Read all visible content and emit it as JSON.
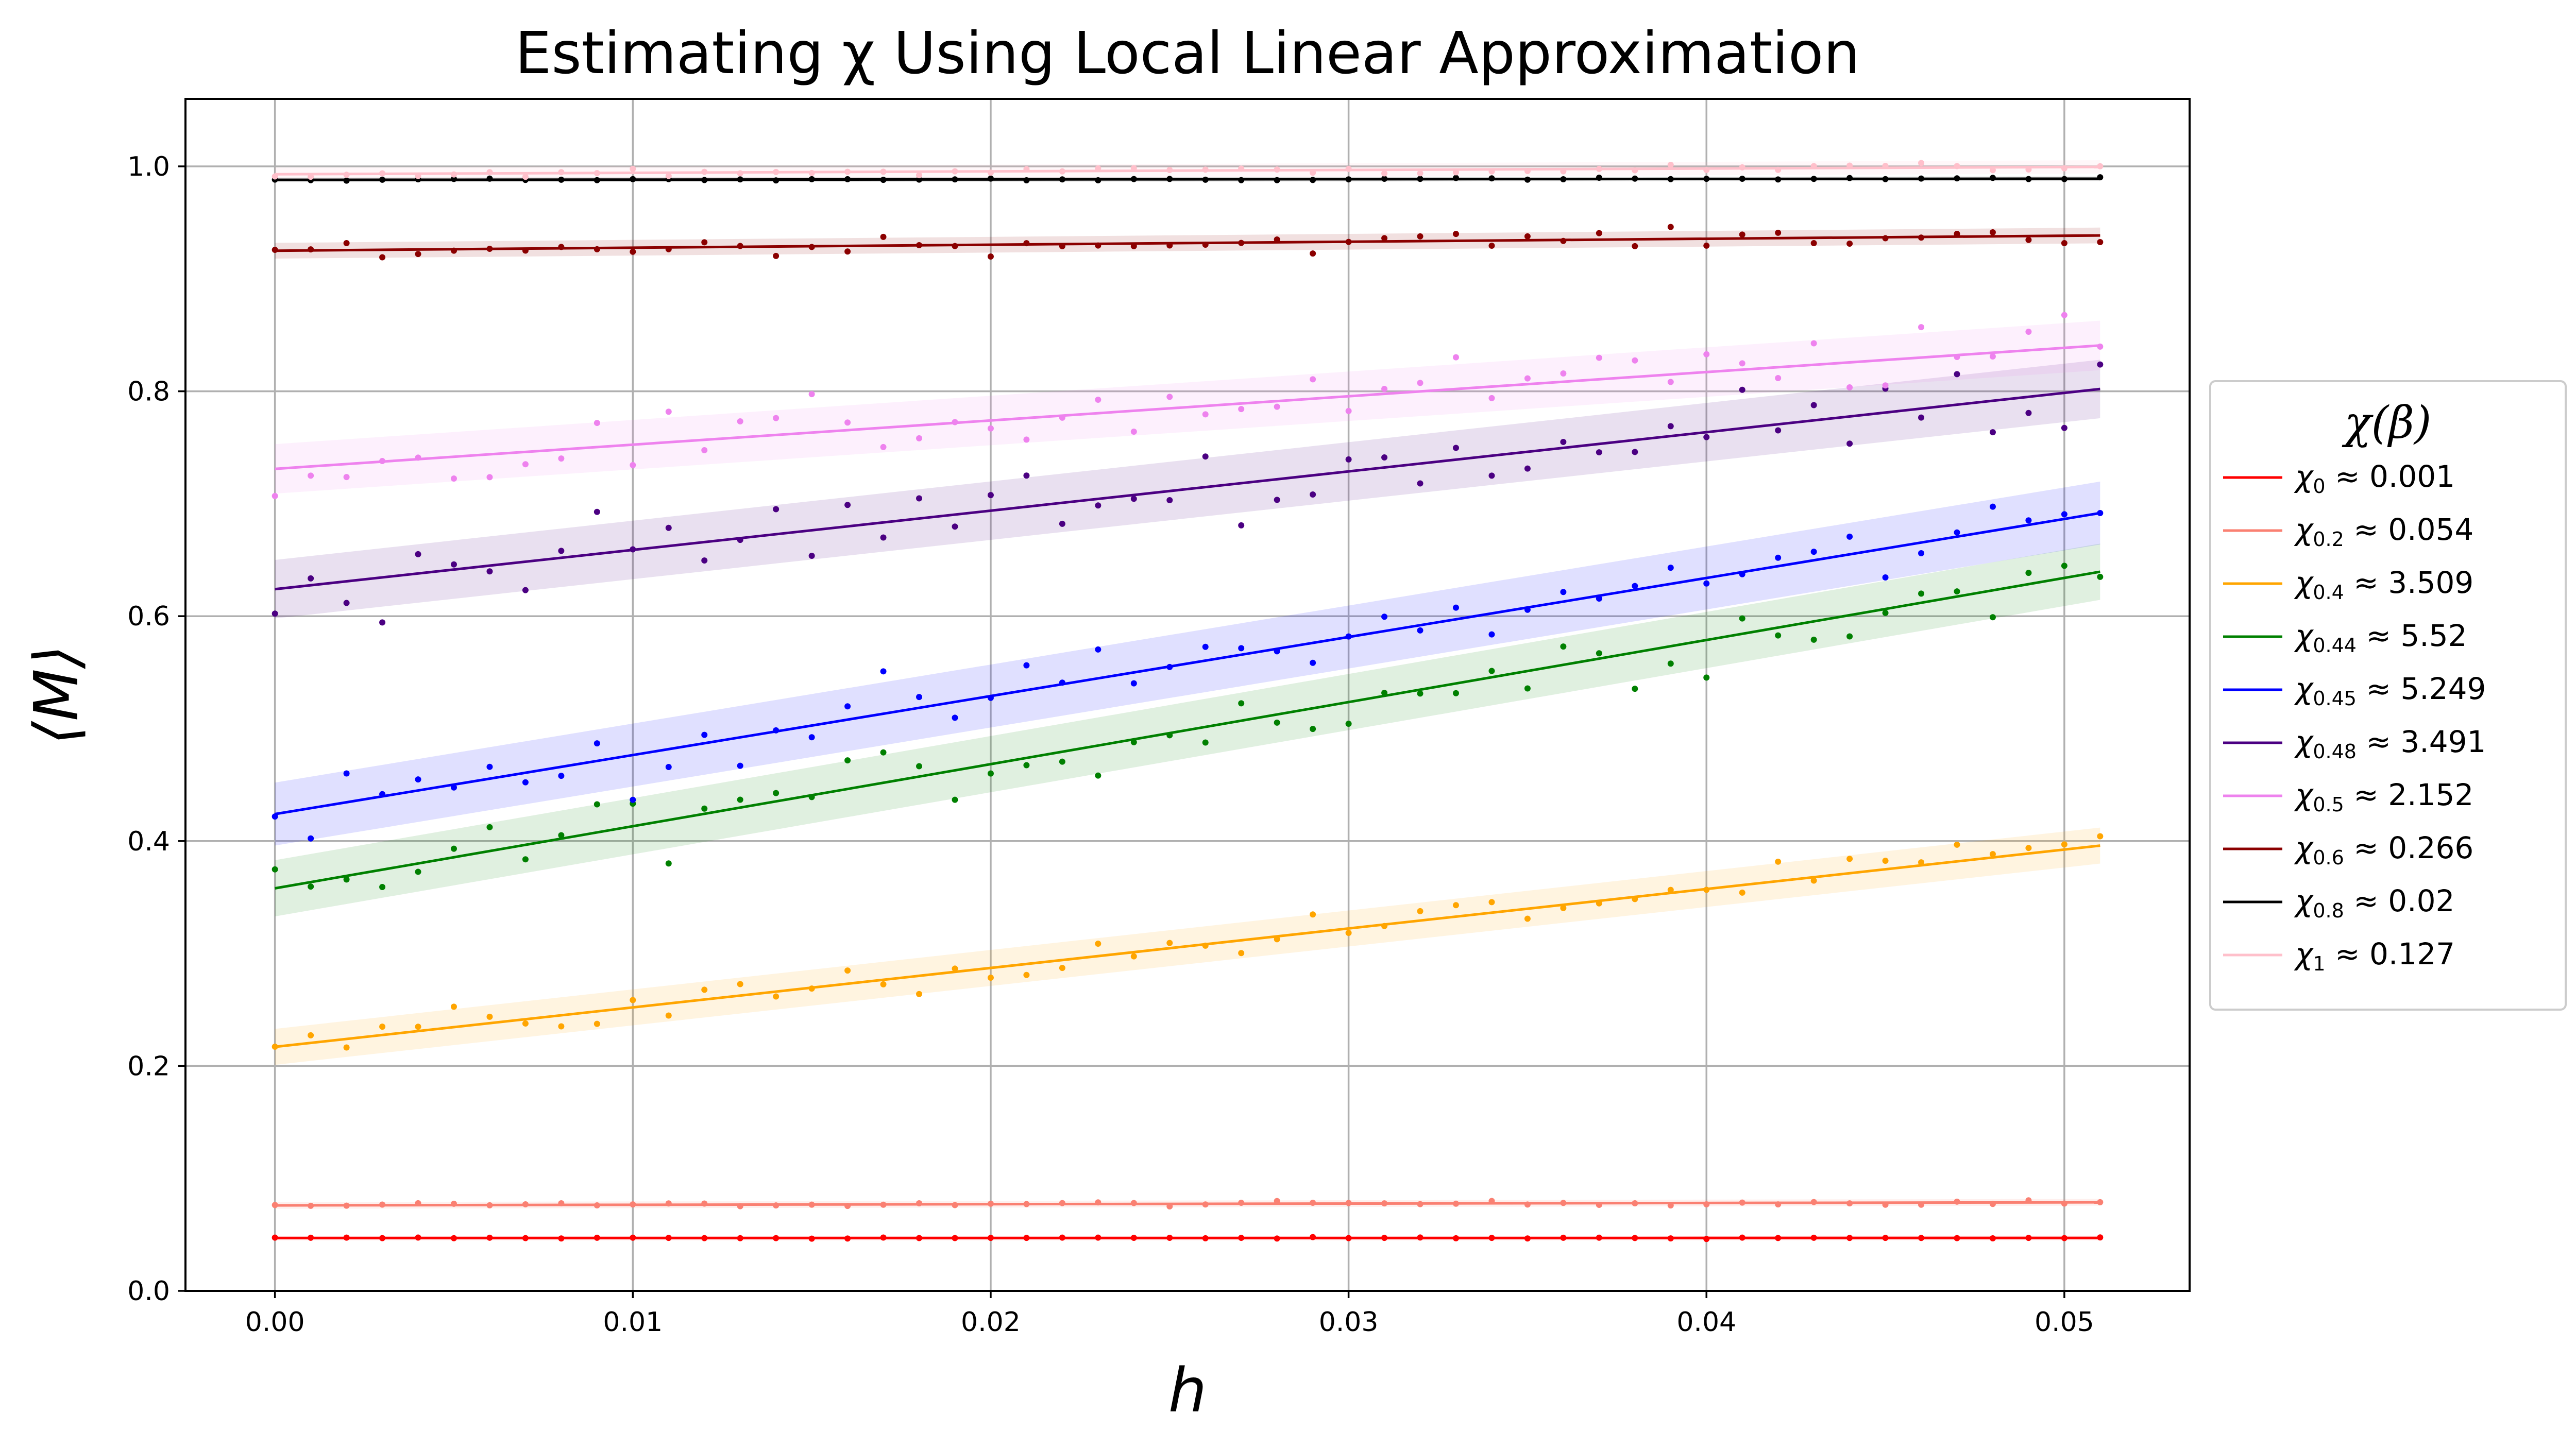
{
  "chart_data": {
    "type": "line",
    "title": "Estimating χ Using Local Linear Approximation",
    "xlabel": "h",
    "ylabel": "⟨M⟩",
    "xlim": [
      -0.0025,
      0.0535
    ],
    "ylim": [
      0.0,
      1.06
    ],
    "grid": true,
    "x_ticks": [
      0.0,
      0.01,
      0.02,
      0.03,
      0.04,
      0.05
    ],
    "x_tick_labels": [
      "0.00",
      "0.01",
      "0.02",
      "0.03",
      "0.04",
      "0.05"
    ],
    "y_ticks": [
      0.0,
      0.2,
      0.4,
      0.6,
      0.8,
      1.0
    ],
    "y_tick_labels": [
      "0.0",
      "0.2",
      "0.4",
      "0.6",
      "0.8",
      "1.0"
    ],
    "x_range": [
      0.0,
      0.051
    ],
    "n_points": 52,
    "legend": {
      "title": "χ(β)",
      "placement": "right-outside"
    },
    "series": [
      {
        "name": "χ0 ≈ 0.001",
        "label_main": "χ",
        "label_sub": "0",
        "label_rest": " ≈ 0.001",
        "color": "#ff0000",
        "intercept": 0.047,
        "slope": 0.001,
        "band": 0.002,
        "noise": 0.0005
      },
      {
        "name": "χ0.2 ≈ 0.054",
        "label_main": "χ",
        "label_sub": "0.2",
        "label_rest": " ≈ 0.054",
        "color": "#fa8072",
        "intercept": 0.076,
        "slope": 0.054,
        "band": 0.003,
        "noise": 0.0015
      },
      {
        "name": "χ0.4 ≈ 3.509",
        "label_main": "χ",
        "label_sub": "0.4",
        "label_rest": " ≈ 3.509",
        "color": "#ffa500",
        "intercept": 0.217,
        "slope": 3.509,
        "band": 0.016,
        "noise": 0.012
      },
      {
        "name": "χ0.44 ≈ 5.52",
        "label_main": "χ",
        "label_sub": "0.44",
        "label_rest": " ≈ 5.52",
        "color": "#008000",
        "intercept": 0.358,
        "slope": 5.52,
        "band": 0.025,
        "noise": 0.022
      },
      {
        "name": "χ0.45 ≈ 5.249",
        "label_main": "χ",
        "label_sub": "0.45",
        "label_rest": " ≈ 5.249",
        "color": "#0000ff",
        "intercept": 0.424,
        "slope": 5.249,
        "band": 0.028,
        "noise": 0.022
      },
      {
        "name": "χ0.48 ≈ 3.491",
        "label_main": "χ",
        "label_sub": "0.48",
        "label_rest": " ≈ 3.491",
        "color": "#4b0082",
        "intercept": 0.624,
        "slope": 3.491,
        "band": 0.026,
        "noise": 0.025
      },
      {
        "name": "χ0.5 ≈ 2.152",
        "label_main": "χ",
        "label_sub": "0.5",
        "label_rest": " ≈ 2.152",
        "color": "#ee82ee",
        "intercept": 0.731,
        "slope": 2.152,
        "band": 0.022,
        "noise": 0.02
      },
      {
        "name": "χ0.6 ≈ 0.266",
        "label_main": "χ",
        "label_sub": "0.6",
        "label_rest": " ≈ 0.266",
        "color": "#8b0000",
        "intercept": 0.925,
        "slope": 0.266,
        "band": 0.007,
        "noise": 0.006
      },
      {
        "name": "χ0.8 ≈ 0.02",
        "label_main": "χ",
        "label_sub": "0.8",
        "label_rest": " ≈ 0.02",
        "color": "#000000",
        "intercept": 0.988,
        "slope": 0.02,
        "band": 0.002,
        "noise": 0.0008
      },
      {
        "name": "χ1 ≈ 0.127",
        "label_main": "χ",
        "label_sub": "1",
        "label_rest": " ≈ 0.127",
        "color": "#ffc0cb",
        "intercept": 0.993,
        "slope": 0.127,
        "band": 0.006,
        "noise": 0.003
      }
    ]
  }
}
